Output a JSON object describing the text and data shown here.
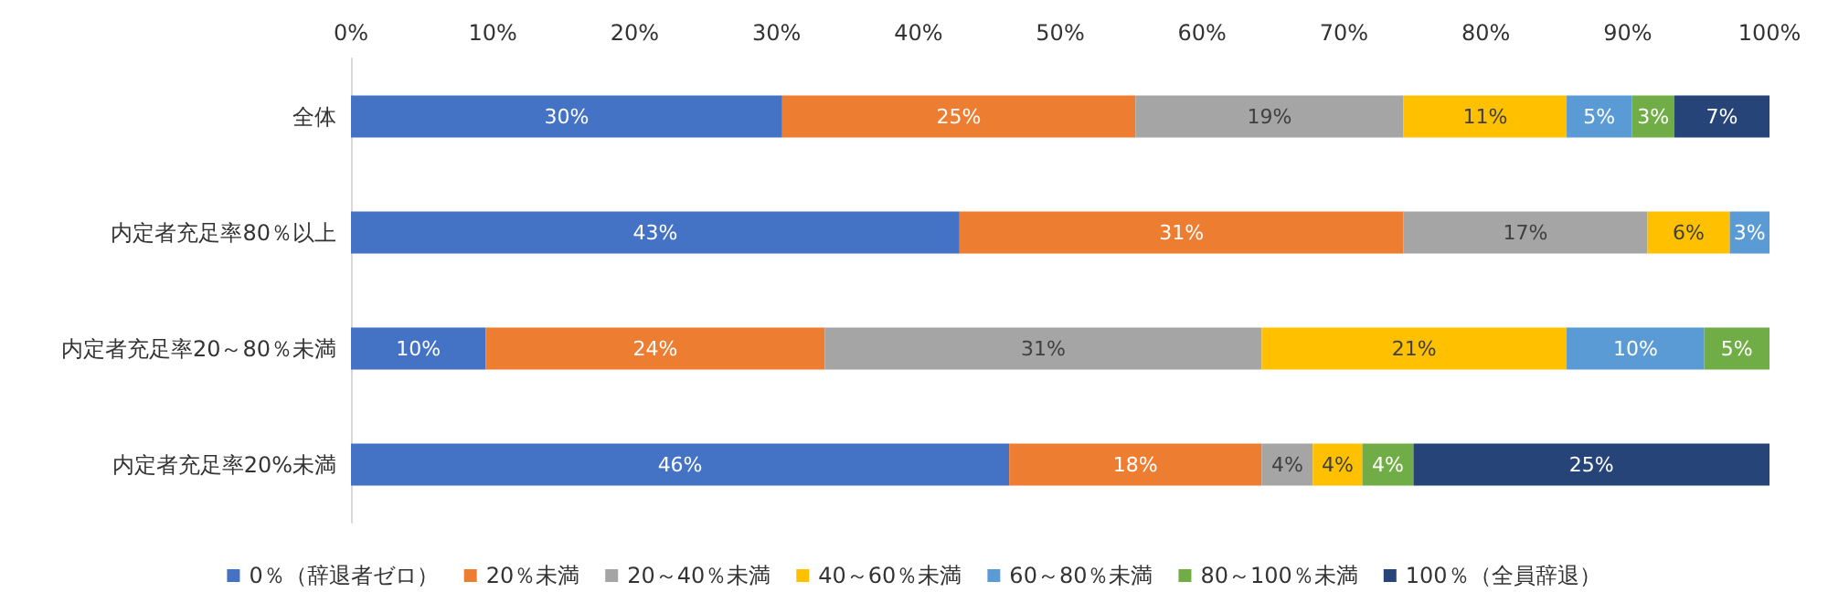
{
  "chart_data": {
    "type": "bar",
    "orientation": "horizontal",
    "stacked": true,
    "categories": [
      "全体",
      "内定者充足率80％以上",
      "内定者充足率20～80％未満",
      "内定者充足率20%未満"
    ],
    "xlim": [
      0,
      100
    ],
    "xticks": [
      {
        "value": 0,
        "label": "0%"
      },
      {
        "value": 10,
        "label": "10%"
      },
      {
        "value": 20,
        "label": "20%"
      },
      {
        "value": 30,
        "label": "30%"
      },
      {
        "value": 40,
        "label": "40%"
      },
      {
        "value": 50,
        "label": "50%"
      },
      {
        "value": 60,
        "label": "60%"
      },
      {
        "value": 70,
        "label": "70%"
      },
      {
        "value": 80,
        "label": "80%"
      },
      {
        "value": 90,
        "label": "90%"
      },
      {
        "value": 100,
        "label": "100%"
      }
    ],
    "grid": false,
    "legend": "bottom",
    "series": [
      {
        "name": "0％（辞退者ゼロ）",
        "color": "#4472c4",
        "values": [
          30.4,
          42.9,
          9.5,
          46.4
        ],
        "value_labels": [
          "30%",
          "43%",
          "10%",
          "46%"
        ]
      },
      {
        "name": "20％未満",
        "color": "#ed7d31",
        "values": [
          24.9,
          31.3,
          23.9,
          17.8
        ],
        "value_labels": [
          "25%",
          "31%",
          "24%",
          "18%"
        ]
      },
      {
        "name": "20～40％未満",
        "color": "#a5a5a5",
        "values": [
          18.9,
          17.2,
          30.8,
          3.6
        ],
        "value_labels": [
          "19%",
          "17%",
          "31%",
          "4%"
        ]
      },
      {
        "name": "40～60％未満",
        "color": "#ffc000",
        "values": [
          11.5,
          5.8,
          21.5,
          3.5
        ],
        "value_labels": [
          "11%",
          "6%",
          "21%",
          "4%"
        ]
      },
      {
        "name": "60～80％未満",
        "color": "#5b9bd5",
        "values": [
          4.6,
          2.8,
          9.7,
          null
        ],
        "value_labels": [
          "5%",
          "3%",
          "10%",
          null
        ]
      },
      {
        "name": "80～100％未満",
        "color": "#70ad47",
        "values": [
          3.0,
          null,
          4.6,
          3.6
        ],
        "value_labels": [
          "3%",
          null,
          "5%",
          "4%"
        ]
      },
      {
        "name": "100％（全員辞退）",
        "color": "#264478",
        "values": [
          6.7,
          null,
          null,
          25.1
        ],
        "value_labels": [
          "7%",
          null,
          null,
          "25%"
        ]
      }
    ]
  }
}
